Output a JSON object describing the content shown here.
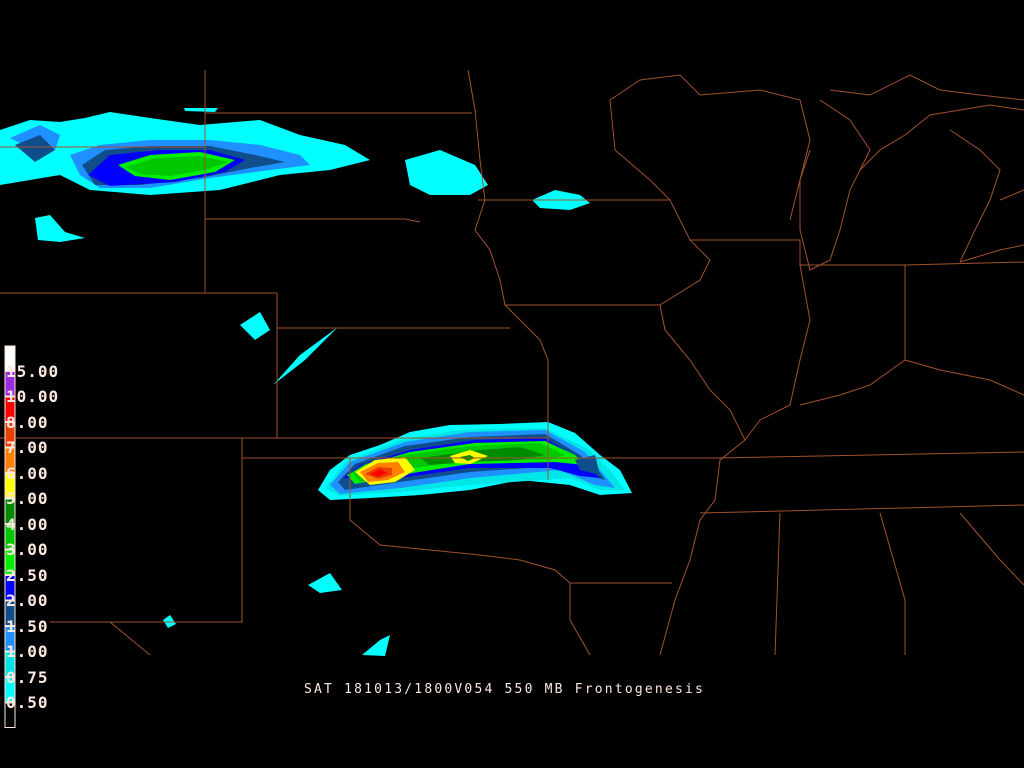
{
  "title": "SAT 181013/1800V054 550 MB Frontogenesis",
  "boundary_color": "#a0522d",
  "colorbar": {
    "levels": [
      "15.00",
      "10.00",
      "8.00",
      "7.00",
      "6.00",
      "5.00",
      "4.00",
      "3.00",
      "2.50",
      "2.00",
      "1.50",
      "1.00",
      "0.75",
      "0.50"
    ],
    "colors": [
      "#ffffff",
      "#9a2be2",
      "#ff0000",
      "#e84000",
      "#ff8000",
      "#ffff00",
      "#008a00",
      "#00c800",
      "#00f000",
      "#0000ff",
      "#104e8b",
      "#1e90ff",
      "#00e5e5",
      "#00ffff",
      "#000000"
    ]
  }
}
